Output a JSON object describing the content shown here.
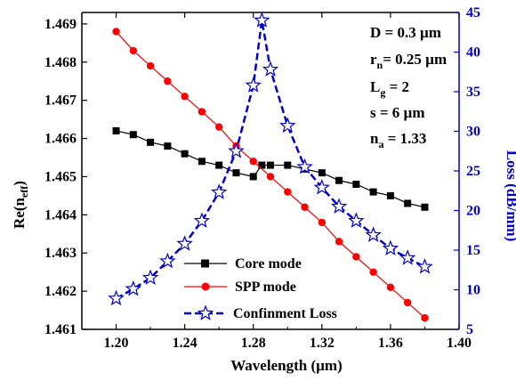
{
  "chart_data": {
    "type": "line",
    "xlabel": "Wavelength (µm)",
    "ylabel_left": "Re(n",
    "ylabel_left_sub": "eff",
    "ylabel_left_close": ")",
    "ylabel_right": "Loss (dB/mm)",
    "xlim": [
      1.18,
      1.4
    ],
    "ylim_left": [
      1.461,
      1.4693
    ],
    "ylim_right": [
      5,
      45
    ],
    "xticks": [
      "1.20",
      "1.24",
      "1.28",
      "1.32",
      "1.36",
      "1.40"
    ],
    "xtick_values": [
      1.2,
      1.24,
      1.28,
      1.32,
      1.36,
      1.4
    ],
    "yticks_left": [
      "1.461",
      "1.462",
      "1.463",
      "1.464",
      "1.465",
      "1.466",
      "1.467",
      "1.468",
      "1.469"
    ],
    "ytick_values_left": [
      1.461,
      1.462,
      1.463,
      1.464,
      1.465,
      1.466,
      1.467,
      1.468,
      1.469
    ],
    "yticks_right": [
      "5",
      "10",
      "15",
      "20",
      "25",
      "30",
      "35",
      "40",
      "45"
    ],
    "ytick_values_right": [
      5,
      10,
      15,
      20,
      25,
      30,
      35,
      40,
      45
    ],
    "series": [
      {
        "name": "Core mode",
        "axis": "left",
        "color": "#000000",
        "marker": "square",
        "x": [
          1.2,
          1.21,
          1.22,
          1.23,
          1.24,
          1.25,
          1.26,
          1.27,
          1.28,
          1.285,
          1.29,
          1.3,
          1.31,
          1.32,
          1.33,
          1.34,
          1.35,
          1.36,
          1.37,
          1.38
        ],
        "y": [
          1.4662,
          1.4661,
          1.4659,
          1.4658,
          1.4656,
          1.4654,
          1.4653,
          1.4651,
          1.465,
          1.4653,
          1.4653,
          1.4653,
          1.4652,
          1.4651,
          1.4649,
          1.4648,
          1.4646,
          1.4645,
          1.4643,
          1.4642
        ]
      },
      {
        "name": "SPP mode",
        "axis": "left",
        "color": "#ff0000",
        "marker": "circle",
        "x": [
          1.2,
          1.21,
          1.22,
          1.23,
          1.24,
          1.25,
          1.26,
          1.27,
          1.28,
          1.29,
          1.3,
          1.31,
          1.32,
          1.33,
          1.34,
          1.35,
          1.36,
          1.37,
          1.38
        ],
        "y": [
          1.4688,
          1.4683,
          1.4679,
          1.4675,
          1.4671,
          1.4667,
          1.4663,
          1.4658,
          1.4654,
          1.465,
          1.4646,
          1.4642,
          1.4638,
          1.4633,
          1.4629,
          1.4625,
          1.4621,
          1.4617,
          1.4613
        ]
      },
      {
        "name": "Confinment Loss",
        "axis": "right",
        "color": "#0000cc",
        "marker": "star",
        "x": [
          1.2,
          1.21,
          1.22,
          1.23,
          1.24,
          1.25,
          1.26,
          1.27,
          1.28,
          1.285,
          1.29,
          1.3,
          1.31,
          1.32,
          1.33,
          1.34,
          1.35,
          1.36,
          1.37,
          1.38
        ],
        "y": [
          8.9,
          10.1,
          11.5,
          13.6,
          15.8,
          18.7,
          22.3,
          27.5,
          35.8,
          44.0,
          37.8,
          30.7,
          25.5,
          22.9,
          20.5,
          18.7,
          16.9,
          15.2,
          14.0,
          12.9
        ]
      }
    ],
    "annotations": [
      {
        "text": "D = 0.3 µm"
      },
      {
        "text": "r",
        "sub": "n",
        "rest": "= 0.25 µm"
      },
      {
        "text": "L",
        "sub": "g",
        "rest": " = 2"
      },
      {
        "text": "s = 6 µm"
      },
      {
        "text": "n",
        "sub": "a",
        "rest": " = 1.33"
      }
    ],
    "legend_position": "bottom-left"
  }
}
